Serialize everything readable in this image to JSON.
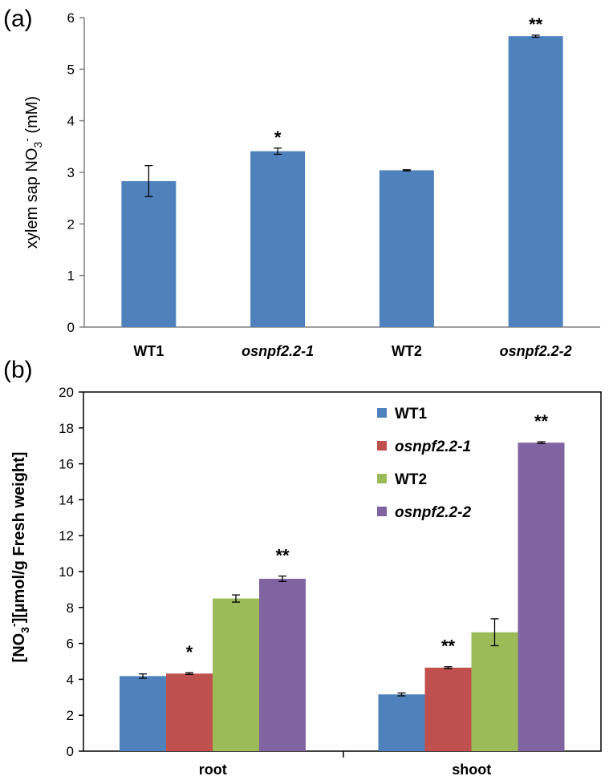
{
  "chart_data": [
    {
      "type": "bar",
      "panel_label": "(a)",
      "categories": [
        "WT1",
        "osnpf2.2-1",
        "WT2",
        "osnpf2.2-2"
      ],
      "category_italic": [
        false,
        true,
        false,
        true
      ],
      "values": [
        2.83,
        3.41,
        3.04,
        5.64
      ],
      "errors": [
        0.3,
        0.06,
        0.01,
        0.02
      ],
      "significance": [
        "",
        "*",
        "",
        "**"
      ],
      "ylabel_parts": [
        "xylem sap NO",
        "3",
        "-",
        " (mM)"
      ],
      "ylim": [
        0,
        6
      ],
      "yticks": [
        "0",
        "1",
        "2",
        "3",
        "4",
        "5",
        "6"
      ],
      "color": "#4F81BD",
      "grid": false
    },
    {
      "type": "bar",
      "panel_label": "(b)",
      "categories": [
        "root",
        "shoot"
      ],
      "series": [
        {
          "name": "WT1",
          "italic": false,
          "color": "#4F81BD",
          "values": [
            4.18,
            3.16
          ],
          "errors": [
            0.12,
            0.08
          ],
          "significance": [
            "",
            ""
          ]
        },
        {
          "name": "osnpf2.2-1",
          "italic": true,
          "color": "#C0504D",
          "values": [
            4.32,
            4.65
          ],
          "errors": [
            0.05,
            0.05
          ],
          "significance": [
            "*",
            "**"
          ]
        },
        {
          "name": "WT2",
          "italic": false,
          "color": "#9BBB59",
          "values": [
            8.5,
            6.62
          ],
          "errors": [
            0.2,
            0.75
          ],
          "significance": [
            "",
            ""
          ]
        },
        {
          "name": "osnpf2.2-2",
          "italic": true,
          "color": "#8064A2",
          "values": [
            9.6,
            17.18
          ],
          "errors": [
            0.15,
            0.05
          ],
          "significance": [
            "**",
            "**"
          ]
        }
      ],
      "ylabel_parts": [
        "[NO",
        "3",
        "-",
        "][µmol/g Fresh weight]"
      ],
      "ylim": [
        0,
        20
      ],
      "yticks": [
        "0",
        "2",
        "4",
        "6",
        "8",
        "10",
        "12",
        "14",
        "16",
        "18",
        "20"
      ],
      "legend_position": "top-right",
      "grid": false
    }
  ]
}
